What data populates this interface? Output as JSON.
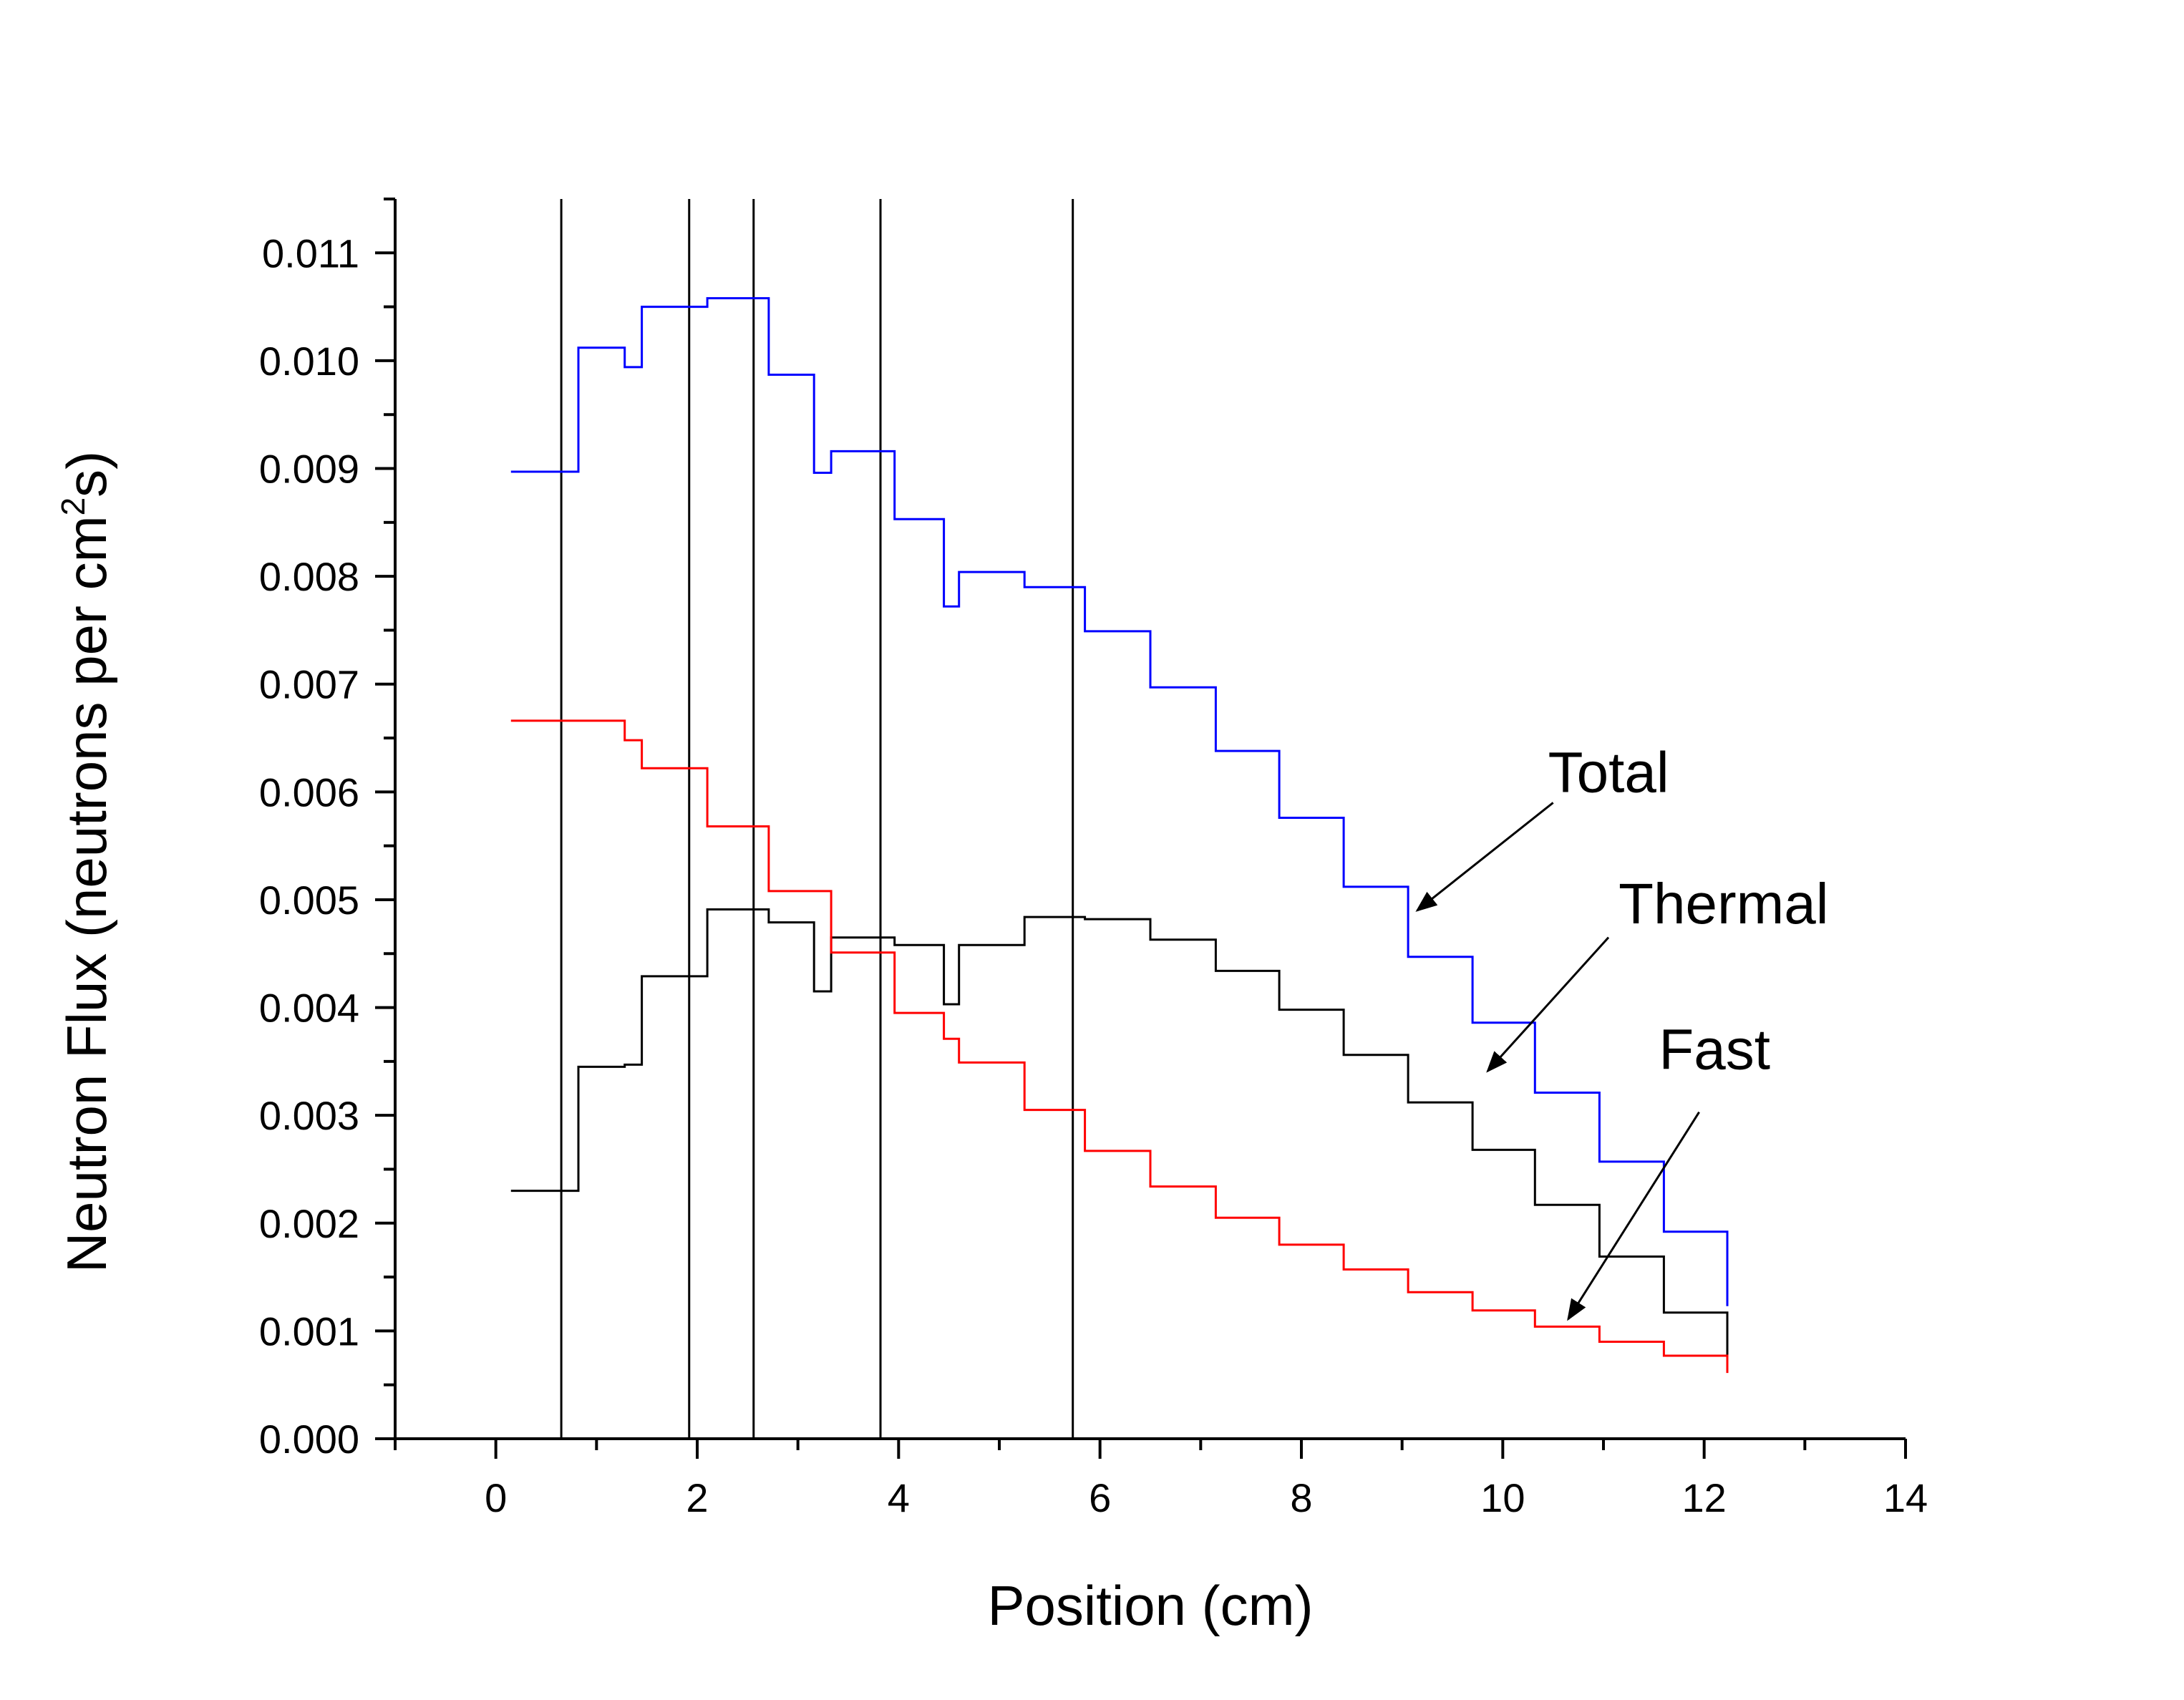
{
  "chart_data": {
    "type": "line",
    "step": true,
    "title": "",
    "xlabel": "Position (cm)",
    "ylabel": {
      "main": "Neutron Flux (neutrons per cm",
      "sup": "2",
      "end": "s)"
    },
    "xlim": [
      -1,
      14
    ],
    "ylim": [
      0,
      0.0115
    ],
    "xticks": [
      "0",
      "2",
      "4",
      "6",
      "8",
      "10",
      "12",
      "14"
    ],
    "yticks": [
      "0.000",
      "0.001",
      "0.002",
      "0.003",
      "0.004",
      "0.005",
      "0.006",
      "0.007",
      "0.008",
      "0.009",
      "0.010",
      "0.011"
    ],
    "x_minor_step": 1,
    "y_minor_step": 0.0005,
    "grid": false,
    "boundaries": [
      0.65,
      1.92,
      2.56,
      3.82,
      5.73
    ],
    "series": [
      {
        "name": "Total",
        "color": "#0000ff",
        "points": [
          [
            0.15,
            0.00897
          ],
          [
            0.82,
            0.00897
          ],
          [
            0.82,
            0.01012
          ],
          [
            1.28,
            0.01012
          ],
          [
            1.28,
            0.00994
          ],
          [
            1.45,
            0.00994
          ],
          [
            1.45,
            0.0105
          ],
          [
            1.95,
            0.0105
          ],
          [
            2.1,
            0.0105
          ],
          [
            2.1,
            0.01058
          ],
          [
            2.71,
            0.01058
          ],
          [
            2.71,
            0.00987
          ],
          [
            3.16,
            0.00987
          ],
          [
            3.16,
            0.00896
          ],
          [
            3.33,
            0.00896
          ],
          [
            3.33,
            0.00916
          ],
          [
            3.96,
            0.00916
          ],
          [
            3.96,
            0.00853
          ],
          [
            4.45,
            0.00853
          ],
          [
            4.45,
            0.00772
          ],
          [
            4.6,
            0.00772
          ],
          [
            4.6,
            0.00804
          ],
          [
            5.25,
            0.00804
          ],
          [
            5.25,
            0.0079
          ],
          [
            5.85,
            0.0079
          ],
          [
            5.85,
            0.00749
          ],
          [
            6.5,
            0.00749
          ],
          [
            6.5,
            0.00697
          ],
          [
            7.15,
            0.00697
          ],
          [
            7.15,
            0.00638
          ],
          [
            7.78,
            0.00638
          ],
          [
            7.78,
            0.00576
          ],
          [
            8.42,
            0.00576
          ],
          [
            8.42,
            0.00512
          ],
          [
            9.06,
            0.00512
          ],
          [
            9.06,
            0.00447
          ],
          [
            9.7,
            0.00447
          ],
          [
            9.7,
            0.00386
          ],
          [
            10.32,
            0.00386
          ],
          [
            10.32,
            0.00321
          ],
          [
            10.96,
            0.00321
          ],
          [
            10.96,
            0.00257
          ],
          [
            11.6,
            0.00257
          ],
          [
            11.6,
            0.00192
          ],
          [
            12.23,
            0.00192
          ],
          [
            12.23,
            0.00123
          ]
        ]
      },
      {
        "name": "Thermal",
        "color": "#000000",
        "points": [
          [
            0.15,
            0.0023
          ],
          [
            0.82,
            0.0023
          ],
          [
            0.82,
            0.00345
          ],
          [
            1.28,
            0.00345
          ],
          [
            1.28,
            0.00347
          ],
          [
            1.45,
            0.00347
          ],
          [
            1.45,
            0.00429
          ],
          [
            2.1,
            0.00429
          ],
          [
            2.1,
            0.00491
          ],
          [
            2.71,
            0.00491
          ],
          [
            2.71,
            0.00479
          ],
          [
            3.16,
            0.00479
          ],
          [
            3.16,
            0.00415
          ],
          [
            3.33,
            0.00415
          ],
          [
            3.33,
            0.00465
          ],
          [
            3.96,
            0.00465
          ],
          [
            3.96,
            0.00458
          ],
          [
            4.45,
            0.00458
          ],
          [
            4.45,
            0.00403
          ],
          [
            4.6,
            0.00403
          ],
          [
            4.6,
            0.00458
          ],
          [
            5.25,
            0.00458
          ],
          [
            5.25,
            0.00484
          ],
          [
            5.85,
            0.00484
          ],
          [
            5.85,
            0.00482
          ],
          [
            6.5,
            0.00482
          ],
          [
            6.5,
            0.00463
          ],
          [
            7.15,
            0.00463
          ],
          [
            7.15,
            0.00434
          ],
          [
            7.78,
            0.00434
          ],
          [
            7.78,
            0.00398
          ],
          [
            8.42,
            0.00398
          ],
          [
            8.42,
            0.00356
          ],
          [
            9.06,
            0.00356
          ],
          [
            9.06,
            0.00312
          ],
          [
            9.7,
            0.00312
          ],
          [
            9.7,
            0.00268
          ],
          [
            10.32,
            0.00268
          ],
          [
            10.32,
            0.00217
          ],
          [
            10.96,
            0.00217
          ],
          [
            10.96,
            0.00169
          ],
          [
            11.6,
            0.00169
          ],
          [
            11.6,
            0.00117
          ],
          [
            12.23,
            0.00117
          ],
          [
            12.23,
            0.00074
          ]
        ]
      },
      {
        "name": "Fast",
        "color": "#ff0000",
        "points": [
          [
            0.15,
            0.00666
          ],
          [
            1.28,
            0.00666
          ],
          [
            1.28,
            0.00648
          ],
          [
            1.45,
            0.00648
          ],
          [
            1.45,
            0.00622
          ],
          [
            2.1,
            0.00622
          ],
          [
            2.1,
            0.00568
          ],
          [
            2.71,
            0.00568
          ],
          [
            2.71,
            0.00508
          ],
          [
            3.33,
            0.00508
          ],
          [
            3.33,
            0.00451
          ],
          [
            3.96,
            0.00451
          ],
          [
            3.96,
            0.00395
          ],
          [
            4.45,
            0.00395
          ],
          [
            4.45,
            0.00371
          ],
          [
            4.6,
            0.00371
          ],
          [
            4.6,
            0.00349
          ],
          [
            5.25,
            0.00349
          ],
          [
            5.25,
            0.00305
          ],
          [
            5.85,
            0.00305
          ],
          [
            5.85,
            0.00267
          ],
          [
            6.5,
            0.00267
          ],
          [
            6.5,
            0.00234
          ],
          [
            7.15,
            0.00234
          ],
          [
            7.15,
            0.00205
          ],
          [
            7.78,
            0.00205
          ],
          [
            7.78,
            0.0018
          ],
          [
            8.42,
            0.0018
          ],
          [
            8.42,
            0.00157
          ],
          [
            9.06,
            0.00157
          ],
          [
            9.06,
            0.00136
          ],
          [
            9.7,
            0.00136
          ],
          [
            9.7,
            0.00119
          ],
          [
            10.32,
            0.00119
          ],
          [
            10.32,
            0.00104
          ],
          [
            10.96,
            0.00104
          ],
          [
            10.96,
            0.0009
          ],
          [
            11.6,
            0.0009
          ],
          [
            11.6,
            0.00077
          ],
          [
            12.23,
            0.00077
          ],
          [
            12.23,
            0.00061
          ]
        ]
      }
    ],
    "annotations": [
      {
        "text": "Total",
        "label_at": [
          10.45,
          0.006
        ],
        "arrow_from": [
          10.5,
          0.0059
        ],
        "arrow_to": [
          9.15,
          0.0049
        ]
      },
      {
        "text": "Thermal",
        "label_at": [
          11.15,
          0.00478
        ],
        "arrow_from": [
          11.05,
          0.00465
        ],
        "arrow_to": [
          9.85,
          0.00341
        ]
      },
      {
        "text": "Fast",
        "label_at": [
          11.55,
          0.00343
        ],
        "arrow_from": [
          11.95,
          0.00303
        ],
        "arrow_to": [
          10.65,
          0.00111
        ]
      }
    ]
  }
}
